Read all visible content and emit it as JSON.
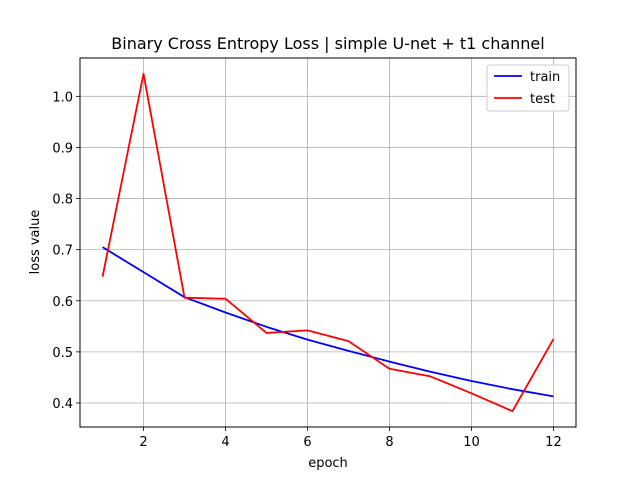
{
  "chart_data": {
    "type": "line",
    "title": "Binary Cross Entropy Loss | simple U-net + t1 channel",
    "xlabel": "epoch",
    "ylabel": "loss value",
    "x": [
      1,
      2,
      3,
      4,
      5,
      6,
      7,
      8,
      9,
      10,
      11,
      12
    ],
    "xlim": [
      0.45,
      12.55
    ],
    "ylim": [
      0.353,
      1.075
    ],
    "xticks": [
      2,
      4,
      6,
      8,
      10,
      12
    ],
    "yticks": [
      0.4,
      0.5,
      0.6,
      0.7,
      0.8,
      0.9,
      1.0
    ],
    "xtick_labels": [
      "2",
      "4",
      "6",
      "8",
      "10",
      "12"
    ],
    "ytick_labels": [
      "0.4",
      "0.5",
      "0.6",
      "0.7",
      "0.8",
      "0.9",
      "1.0"
    ],
    "grid": true,
    "legend_position": "top-right",
    "series": [
      {
        "name": "train",
        "color": "#0000ff",
        "values": [
          0.705,
          0.656,
          0.607,
          0.577,
          0.549,
          0.524,
          0.502,
          0.481,
          0.461,
          0.443,
          0.427,
          0.413
        ]
      },
      {
        "name": "test",
        "color": "#ff0000",
        "values": [
          0.647,
          1.044,
          0.606,
          0.604,
          0.537,
          0.542,
          0.521,
          0.467,
          0.452,
          0.419,
          0.384,
          0.525
        ]
      }
    ]
  }
}
